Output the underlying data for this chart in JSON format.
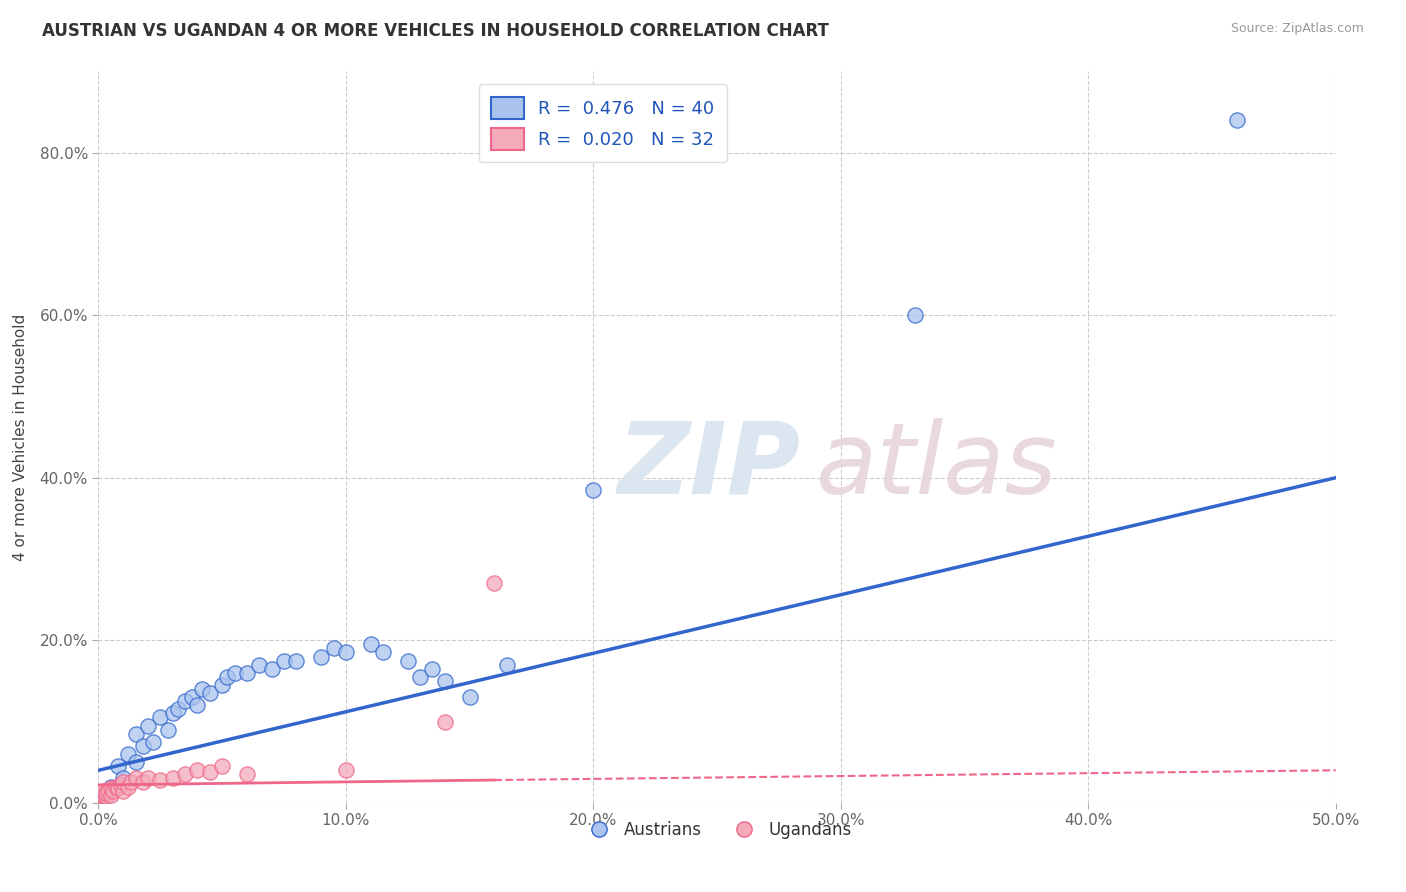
{
  "title": "AUSTRIAN VS UGANDAN 4 OR MORE VEHICLES IN HOUSEHOLD CORRELATION CHART",
  "source": "Source: ZipAtlas.com",
  "ylabel": "4 or more Vehicles in Household",
  "xlim": [
    0.0,
    0.5
  ],
  "ylim": [
    0.0,
    0.9
  ],
  "xticks": [
    0.0,
    0.1,
    0.2,
    0.3,
    0.4,
    0.5
  ],
  "xtick_labels": [
    "0.0%",
    "10.0%",
    "20.0%",
    "30.0%",
    "40.0%",
    "50.0%"
  ],
  "yticks": [
    0.0,
    0.2,
    0.4,
    0.6,
    0.8
  ],
  "ytick_labels": [
    "0.0%",
    "20.0%",
    "40.0%",
    "60.0%",
    "80.0%"
  ],
  "legend_r_austrians": "R =  0.476",
  "legend_n_austrians": "N = 40",
  "legend_r_ugandans": "R =  0.020",
  "legend_n_ugandans": "N = 32",
  "austrian_color": "#aac4ee",
  "ugandan_color": "#f4aabb",
  "austrian_line_color": "#3366cc",
  "ugandan_line_color": "#ee6688",
  "austrians_x": [
    0.005,
    0.008,
    0.01,
    0.012,
    0.015,
    0.015,
    0.018,
    0.02,
    0.022,
    0.025,
    0.028,
    0.03,
    0.032,
    0.035,
    0.038,
    0.04,
    0.042,
    0.045,
    0.05,
    0.052,
    0.055,
    0.06,
    0.065,
    0.07,
    0.075,
    0.08,
    0.09,
    0.095,
    0.1,
    0.11,
    0.115,
    0.125,
    0.13,
    0.135,
    0.14,
    0.15,
    0.165,
    0.2,
    0.33,
    0.46
  ],
  "austrians_y": [
    0.02,
    0.045,
    0.03,
    0.06,
    0.05,
    0.085,
    0.07,
    0.095,
    0.075,
    0.105,
    0.09,
    0.11,
    0.115,
    0.125,
    0.13,
    0.12,
    0.14,
    0.135,
    0.145,
    0.155,
    0.16,
    0.16,
    0.17,
    0.165,
    0.175,
    0.175,
    0.18,
    0.19,
    0.185,
    0.195,
    0.185,
    0.175,
    0.155,
    0.165,
    0.15,
    0.13,
    0.17,
    0.385,
    0.6,
    0.84
  ],
  "ugandans_x": [
    0.0,
    0.0,
    0.001,
    0.001,
    0.002,
    0.002,
    0.003,
    0.003,
    0.004,
    0.005,
    0.005,
    0.006,
    0.007,
    0.008,
    0.009,
    0.01,
    0.01,
    0.012,
    0.013,
    0.015,
    0.018,
    0.02,
    0.025,
    0.03,
    0.035,
    0.04,
    0.045,
    0.05,
    0.06,
    0.1,
    0.14,
    0.16
  ],
  "ugandans_y": [
    0.005,
    0.01,
    0.005,
    0.01,
    0.01,
    0.015,
    0.008,
    0.012,
    0.015,
    0.01,
    0.018,
    0.015,
    0.02,
    0.018,
    0.022,
    0.015,
    0.025,
    0.02,
    0.025,
    0.03,
    0.025,
    0.03,
    0.028,
    0.03,
    0.035,
    0.04,
    0.038,
    0.045,
    0.035,
    0.04,
    0.1,
    0.27
  ],
  "aus_line_x0": 0.0,
  "aus_line_x1": 0.5,
  "aus_line_y0": 0.04,
  "aus_line_y1": 0.4,
  "uga_line_x0": 0.0,
  "uga_line_x1": 0.5,
  "uga_line_y0": 0.022,
  "uga_line_y1": 0.04,
  "uga_line_solid_x1": 0.16,
  "uga_line_solid_y1": 0.028
}
